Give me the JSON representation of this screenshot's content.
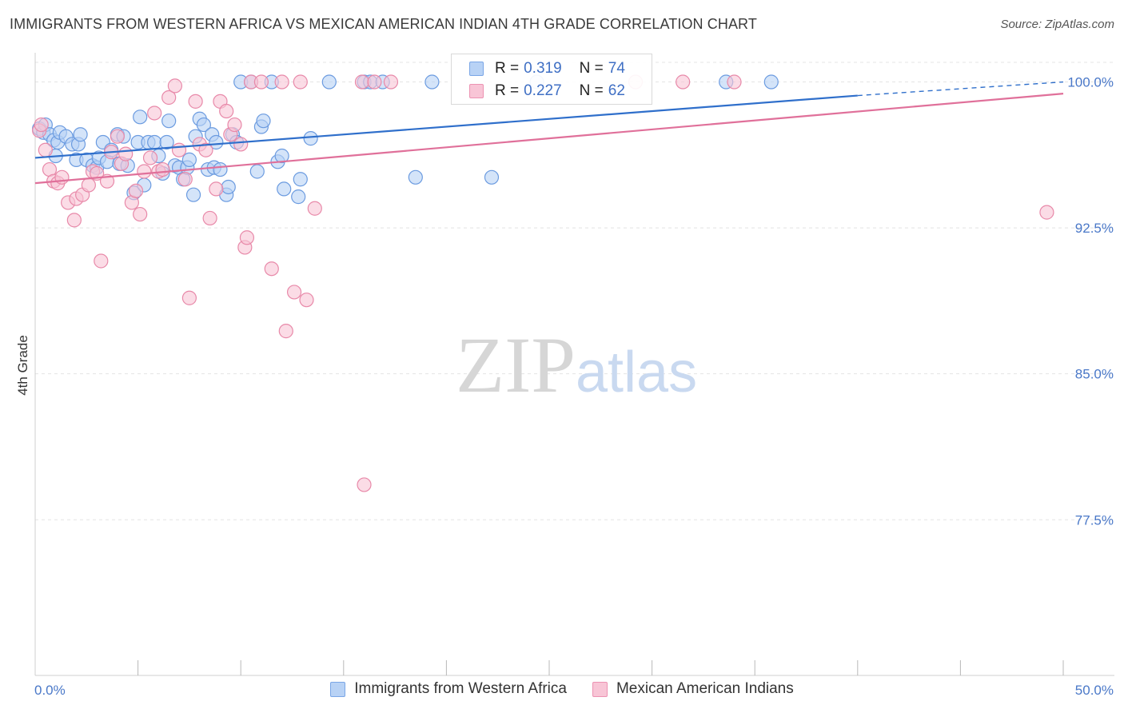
{
  "title": "IMMIGRANTS FROM WESTERN AFRICA VS MEXICAN AMERICAN INDIAN 4TH GRADE CORRELATION CHART",
  "source": "Source: ZipAtlas.com",
  "watermark": {
    "zip": "ZIP",
    "atlas": "atlas"
  },
  "legend": {
    "r_label": "R =",
    "n_label": "N =",
    "rows": [
      {
        "r": "0.319",
        "n": "74",
        "fill": "#b8d2f5",
        "stroke": "#7aa6e6"
      },
      {
        "r": "0.227",
        "n": "62",
        "fill": "#f8c5d6",
        "stroke": "#ec92b2"
      }
    ]
  },
  "colors": {
    "blue_fill": "#b8d2f5",
    "blue_stroke": "#6b9be0",
    "blue_line": "#2f6fcb",
    "pink_fill": "#f8c5d6",
    "pink_stroke": "#e889a9",
    "pink_line": "#e0709a",
    "tick_text": "#4a78c8",
    "grid": "#e4e4e4"
  },
  "chart_data": {
    "type": "scatter",
    "title": "IMMIGRANTS FROM WESTERN AFRICA VS MEXICAN AMERICAN INDIAN 4TH GRADE CORRELATION CHART",
    "xlabel": "",
    "ylabel": "4th Grade",
    "xlim": [
      0,
      50
    ],
    "ylim": [
      69.5,
      101.5
    ],
    "x_tick_labels": [
      "0.0%",
      "50.0%"
    ],
    "y_ticks": [
      {
        "value": 100.0,
        "label": "100.0%"
      },
      {
        "value": 92.5,
        "label": "92.5%"
      },
      {
        "value": 85.0,
        "label": "85.0%"
      },
      {
        "value": 77.5,
        "label": "77.5%"
      }
    ],
    "grid": true,
    "legend_position": "top-center",
    "series": [
      {
        "name": "Immigrants from Western Africa",
        "color": "blue",
        "r": 0.319,
        "n": 74,
        "trend": {
          "x": [
            0,
            40
          ],
          "y": [
            96.1,
            99.3
          ],
          "dashed_to": [
            50,
            100.0
          ]
        },
        "points": [
          [
            0.2,
            97.6
          ],
          [
            0.4,
            97.4
          ],
          [
            0.5,
            97.8
          ],
          [
            0.7,
            97.3
          ],
          [
            0.9,
            97.0
          ],
          [
            1.0,
            96.2
          ],
          [
            1.1,
            96.9
          ],
          [
            1.2,
            97.4
          ],
          [
            1.5,
            97.2
          ],
          [
            1.8,
            96.8
          ],
          [
            2.0,
            96.0
          ],
          [
            2.1,
            96.8
          ],
          [
            2.2,
            97.3
          ],
          [
            2.5,
            96.0
          ],
          [
            2.8,
            95.7
          ],
          [
            3.0,
            95.6
          ],
          [
            3.1,
            96.1
          ],
          [
            3.3,
            96.9
          ],
          [
            3.5,
            95.9
          ],
          [
            3.7,
            96.5
          ],
          [
            4.0,
            97.3
          ],
          [
            4.1,
            95.8
          ],
          [
            4.3,
            97.2
          ],
          [
            4.5,
            95.7
          ],
          [
            4.8,
            94.3
          ],
          [
            5.0,
            96.9
          ],
          [
            5.1,
            98.2
          ],
          [
            5.3,
            94.7
          ],
          [
            5.5,
            96.9
          ],
          [
            5.8,
            96.9
          ],
          [
            6.0,
            96.2
          ],
          [
            6.2,
            95.3
          ],
          [
            6.4,
            96.9
          ],
          [
            6.5,
            98.0
          ],
          [
            6.8,
            95.7
          ],
          [
            7.0,
            95.6
          ],
          [
            7.2,
            95.0
          ],
          [
            7.4,
            95.6
          ],
          [
            7.5,
            96.0
          ],
          [
            7.7,
            94.2
          ],
          [
            7.8,
            97.2
          ],
          [
            8.0,
            98.1
          ],
          [
            8.2,
            97.8
          ],
          [
            8.4,
            95.5
          ],
          [
            8.6,
            97.3
          ],
          [
            8.7,
            95.6
          ],
          [
            8.8,
            96.9
          ],
          [
            9.0,
            95.5
          ],
          [
            9.3,
            94.2
          ],
          [
            9.4,
            94.6
          ],
          [
            9.6,
            97.3
          ],
          [
            9.8,
            96.9
          ],
          [
            10.0,
            100.0
          ],
          [
            10.5,
            100.0
          ],
          [
            10.8,
            95.4
          ],
          [
            11.0,
            97.7
          ],
          [
            11.1,
            98.0
          ],
          [
            11.5,
            100.0
          ],
          [
            11.8,
            95.9
          ],
          [
            12.0,
            96.2
          ],
          [
            12.1,
            94.5
          ],
          [
            12.8,
            94.1
          ],
          [
            12.9,
            95.0
          ],
          [
            13.4,
            97.1
          ],
          [
            14.3,
            100.0
          ],
          [
            16.0,
            100.0
          ],
          [
            16.3,
            100.0
          ],
          [
            16.9,
            100.0
          ],
          [
            18.5,
            95.1
          ],
          [
            19.3,
            100.0
          ],
          [
            22.2,
            95.1
          ],
          [
            24.4,
            100.0
          ],
          [
            33.6,
            100.0
          ],
          [
            35.8,
            100.0
          ]
        ]
      },
      {
        "name": "Mexican American Indians",
        "color": "pink",
        "r": 0.227,
        "n": 62,
        "trend": {
          "x": [
            0,
            50
          ],
          "y": [
            94.8,
            99.4
          ]
        },
        "points": [
          [
            0.2,
            97.5
          ],
          [
            0.3,
            97.8
          ],
          [
            0.5,
            96.5
          ],
          [
            0.7,
            95.5
          ],
          [
            0.9,
            94.9
          ],
          [
            1.1,
            94.8
          ],
          [
            1.3,
            95.1
          ],
          [
            1.6,
            93.8
          ],
          [
            1.9,
            92.9
          ],
          [
            2.0,
            94.0
          ],
          [
            2.3,
            94.2
          ],
          [
            2.6,
            94.7
          ],
          [
            2.8,
            95.4
          ],
          [
            3.0,
            95.3
          ],
          [
            3.2,
            90.8
          ],
          [
            3.5,
            94.9
          ],
          [
            3.7,
            96.4
          ],
          [
            4.0,
            97.2
          ],
          [
            4.2,
            95.8
          ],
          [
            4.4,
            96.3
          ],
          [
            4.7,
            93.8
          ],
          [
            4.9,
            94.4
          ],
          [
            5.1,
            93.2
          ],
          [
            5.3,
            95.4
          ],
          [
            5.6,
            96.1
          ],
          [
            5.8,
            98.4
          ],
          [
            6.0,
            95.4
          ],
          [
            6.2,
            95.5
          ],
          [
            6.5,
            99.2
          ],
          [
            6.8,
            99.8
          ],
          [
            7.0,
            96.5
          ],
          [
            7.3,
            95.0
          ],
          [
            7.5,
            88.9
          ],
          [
            7.8,
            99.0
          ],
          [
            8.0,
            96.8
          ],
          [
            8.3,
            96.5
          ],
          [
            8.5,
            93.0
          ],
          [
            8.8,
            94.5
          ],
          [
            9.0,
            99.0
          ],
          [
            9.3,
            98.5
          ],
          [
            9.5,
            97.3
          ],
          [
            9.7,
            97.8
          ],
          [
            10.0,
            96.8
          ],
          [
            10.2,
            91.5
          ],
          [
            10.3,
            92.0
          ],
          [
            10.5,
            100.0
          ],
          [
            11.0,
            100.0
          ],
          [
            11.5,
            90.4
          ],
          [
            12.0,
            100.0
          ],
          [
            12.2,
            87.2
          ],
          [
            12.6,
            89.2
          ],
          [
            12.9,
            100.0
          ],
          [
            13.2,
            88.8
          ],
          [
            13.6,
            93.5
          ],
          [
            15.9,
            100.0
          ],
          [
            16.0,
            79.3
          ],
          [
            16.5,
            100.0
          ],
          [
            17.3,
            100.0
          ],
          [
            29.2,
            100.0
          ],
          [
            31.5,
            100.0
          ],
          [
            34.0,
            100.0
          ],
          [
            49.2,
            93.3
          ]
        ]
      }
    ]
  },
  "bottom_legend": [
    {
      "label": "Immigrants from Western Africa"
    },
    {
      "label": "Mexican American Indians"
    }
  ]
}
